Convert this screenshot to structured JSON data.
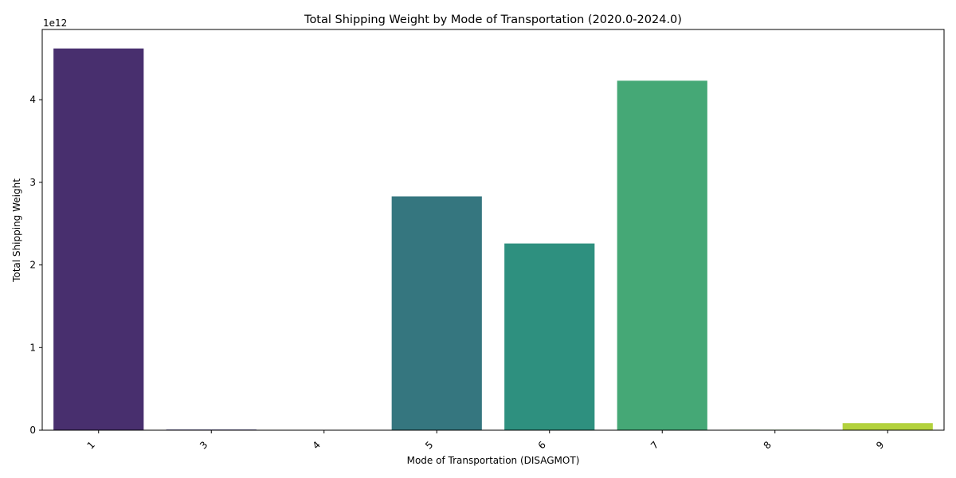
{
  "chart_data": {
    "type": "bar",
    "title": "Total Shipping Weight by Mode of Transportation (2020.0-2024.0)",
    "xlabel": "Mode of Transportation (DISAGMOT)",
    "ylabel": "Total Shipping Weight",
    "y_offset_label": "1e12",
    "categories": [
      "1",
      "3",
      "4",
      "5",
      "6",
      "7",
      "8",
      "9"
    ],
    "values": [
      4620000000000.0,
      8000000000.0,
      0.0,
      2830000000000.0,
      2260000000000.0,
      4230000000000.0,
      6000000000.0,
      85000000000.0
    ],
    "ylim": [
      0,
      4850000000000.0
    ],
    "yticks": [
      0,
      1000000000000.0,
      2000000000000.0,
      3000000000000.0,
      4000000000000.0
    ],
    "ytick_labels": [
      "0",
      "1",
      "2",
      "3",
      "4"
    ],
    "colors": [
      "#482f6e",
      "#433e85",
      "#3a548c",
      "#35767f",
      "#2e907f",
      "#45a876",
      "#74c150",
      "#b3d23d"
    ],
    "grid": false,
    "legend": "none",
    "xtick_rotation": "45 degrees"
  }
}
